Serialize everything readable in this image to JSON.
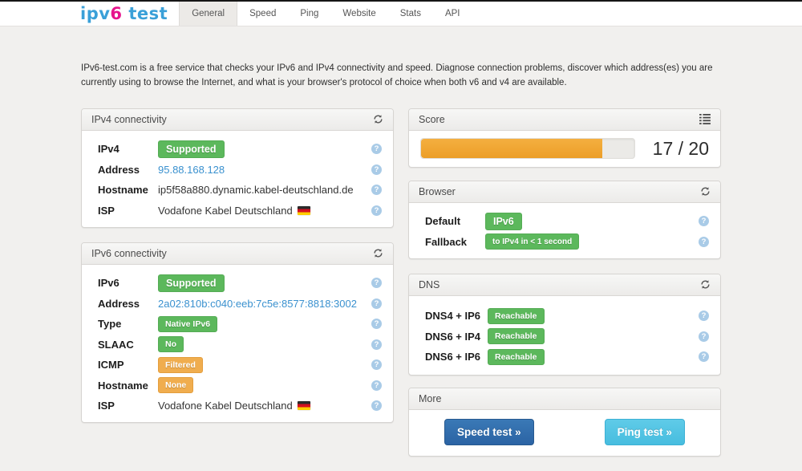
{
  "nav": {
    "logo": {
      "part1": "ipv",
      "part2": "6",
      "part3": " test"
    },
    "tabs": [
      {
        "label": "General",
        "active": true
      },
      {
        "label": "Speed",
        "active": false
      },
      {
        "label": "Ping",
        "active": false
      },
      {
        "label": "Website",
        "active": false
      },
      {
        "label": "Stats",
        "active": false
      },
      {
        "label": "API",
        "active": false
      }
    ]
  },
  "intro": "IPv6-test.com is a free service that checks your IPv6 and IPv4 connectivity and speed. Diagnose connection problems, discover which address(es) you are currently using to browse the Internet, and what is your browser's protocol of choice when both v6 and v4 are available.",
  "panels": {
    "ipv4": {
      "title": "IPv4 connectivity",
      "rows": [
        {
          "label": "IPv4",
          "badge": "Supported"
        },
        {
          "label": "Address",
          "value": "95.88.168.128"
        },
        {
          "label": "Hostname",
          "value": "ip5f58a880.dynamic.kabel-deutschland.de"
        },
        {
          "label": "ISP",
          "value": "Vodafone Kabel Deutschland"
        }
      ]
    },
    "ipv6": {
      "title": "IPv6 connectivity",
      "rows": [
        {
          "label": "IPv6",
          "badge": "Supported"
        },
        {
          "label": "Address",
          "value": "2a02:810b:c040:eeb:7c5e:8577:8818:3002"
        },
        {
          "label": "Type",
          "badge": "Native IPv6"
        },
        {
          "label": "SLAAC",
          "badge": "No"
        },
        {
          "label": "ICMP",
          "badge": "Filtered"
        },
        {
          "label": "Hostname",
          "badge": "None"
        },
        {
          "label": "ISP",
          "value": "Vodafone Kabel Deutschland"
        }
      ]
    },
    "score": {
      "title": "Score",
      "value": 17,
      "max": 20,
      "display": "17 / 20"
    },
    "browser": {
      "title": "Browser",
      "rows": [
        {
          "label": "Default",
          "badge": "IPv6"
        },
        {
          "label": "Fallback",
          "badge": "to IPv4 in < 1 second"
        }
      ]
    },
    "dns": {
      "title": "DNS",
      "rows": [
        {
          "label": "DNS4 + IP6",
          "badge": "Reachable"
        },
        {
          "label": "DNS6 + IP4",
          "badge": "Reachable"
        },
        {
          "label": "DNS6 + IP6",
          "badge": "Reachable"
        }
      ]
    },
    "more": {
      "title": "More",
      "buttons": [
        {
          "label": "Speed test »"
        },
        {
          "label": "Ping test »"
        }
      ]
    }
  },
  "icons": {
    "help": "?",
    "refresh": "refresh-icon",
    "list": "list-icon",
    "flag": "germany-flag-icon"
  },
  "colors": {
    "badge_green": "#5cb85c",
    "badge_orange": "#f0ad4e",
    "link_blue": "#3a91cf",
    "score_bar": "#efa22f",
    "button_dark_blue": "#2f6cab",
    "button_light_blue": "#50c2e4",
    "logo_blue": "#3aa0d8",
    "logo_pink": "#e6148c"
  }
}
